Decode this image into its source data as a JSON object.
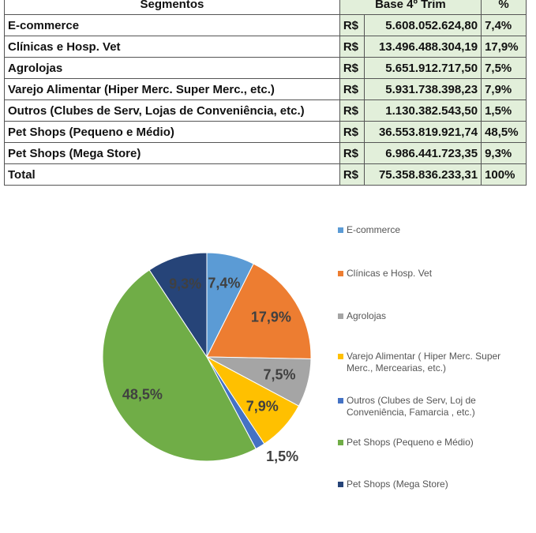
{
  "table": {
    "header": [
      "Segmentos",
      "Base 4º Trim",
      "%"
    ],
    "rows": [
      [
        "E-commerce",
        "R$",
        "5.608.052.624,80",
        "7,4%"
      ],
      [
        "Clínicas e Hosp. Vet",
        "R$",
        "13.496.488.304,19",
        "17,9%"
      ],
      [
        "Agrolojas",
        "R$",
        "5.651.912.717,50",
        "7,5%"
      ],
      [
        "Varejo Alimentar (Hiper Merc. Super Merc., etc.)",
        "R$",
        "5.931.738.398,23",
        "7,9%"
      ],
      [
        "Outros (Clubes de Serv, Lojas de Conveniência, etc.)",
        "R$",
        "1.130.382.543,50",
        "1,5%"
      ],
      [
        "Pet Shops (Pequeno e Médio)",
        "R$",
        "36.553.819.921,74",
        "48,5%"
      ],
      [
        "Pet Shops (Mega Store)",
        "R$",
        "6.986.441.723,35",
        "9,3%"
      ],
      [
        "Total",
        "R$",
        "75.358.836.233,31",
        "100%"
      ]
    ]
  },
  "chart_data": {
    "type": "pie",
    "categories": [
      "E-commerce",
      "Clínicas e Hosp. Vet",
      "Agrolojas",
      "Varejo Alimentar ( Hiper Merc. Super Merc., Mercearias, etc.)",
      "Outros (Clubes de Serv, Loj de Conveniência, Famarcia , etc.)",
      "Pet Shops (Pequeno e Médio)",
      "Pet Shops (Mega Store)"
    ],
    "values": [
      7.4,
      17.9,
      7.5,
      7.9,
      1.5,
      48.5,
      9.3
    ],
    "value_labels": [
      "7,4%",
      "17,9%",
      "7,5%",
      "7,9%",
      "1,5%",
      "48,5%",
      "9,3%"
    ],
    "colors": [
      "#5b9bd5",
      "#ed7d31",
      "#a5a5a5",
      "#ffc000",
      "#4472c4",
      "#70ad47",
      "#264478"
    ]
  }
}
